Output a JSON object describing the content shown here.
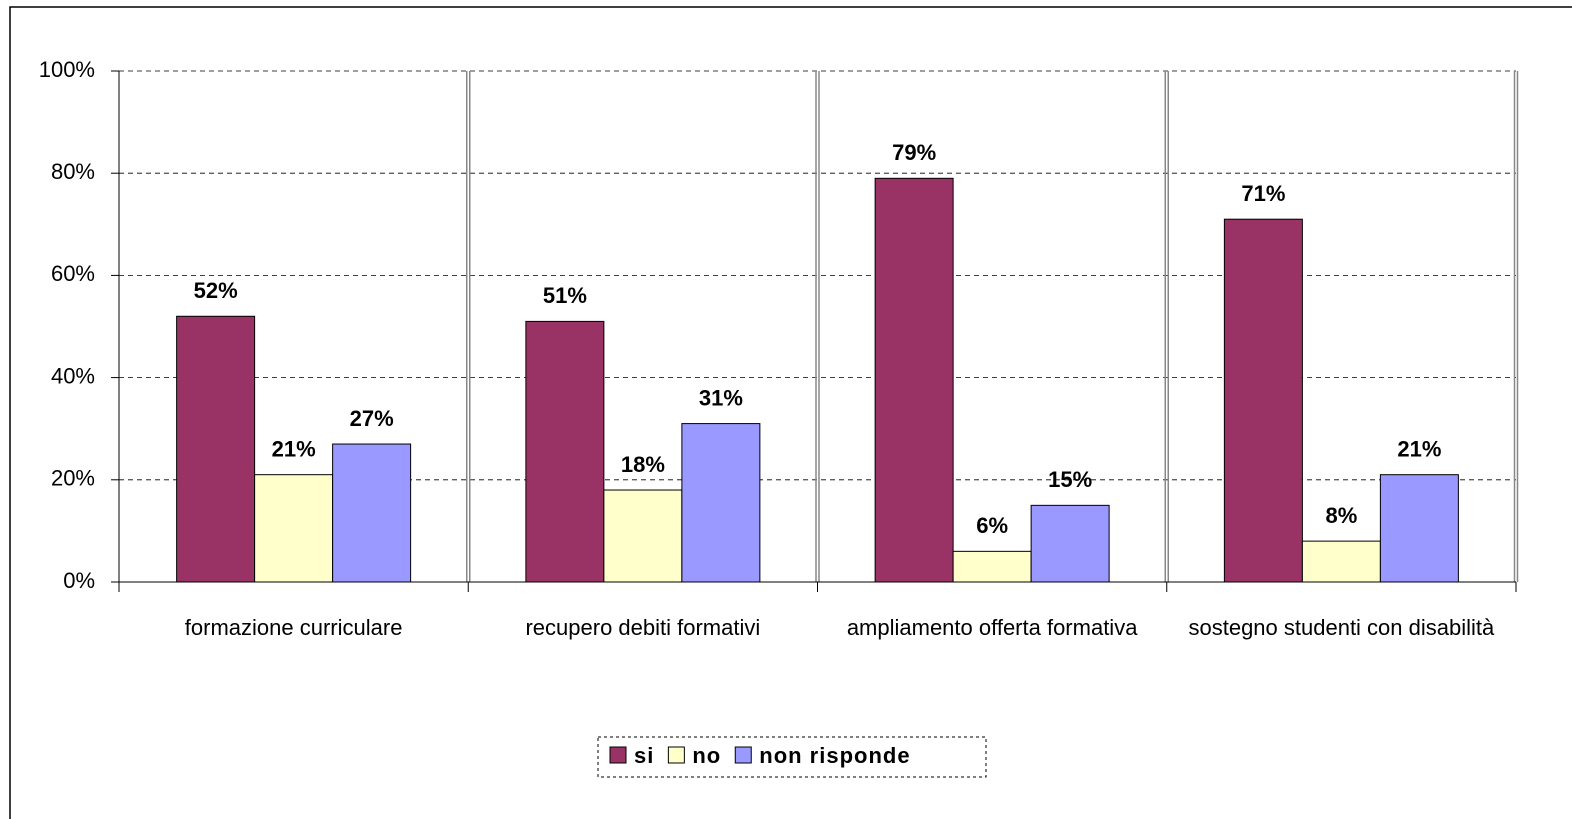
{
  "chart_data": {
    "type": "bar",
    "categories": [
      "formazione curriculare",
      "recupero debiti formativi",
      "ampliamento offerta formativa",
      "sostegno studenti con disabilità"
    ],
    "series": [
      {
        "name": "si",
        "color": "#993366",
        "values": [
          52,
          51,
          79,
          71
        ],
        "value_labels": [
          "52%",
          "51%",
          "79%",
          "71%"
        ]
      },
      {
        "name": "no",
        "color": "#ffffcc",
        "values": [
          21,
          18,
          6,
          8
        ],
        "value_labels": [
          "21%",
          "18%",
          "6%",
          "8%"
        ]
      },
      {
        "name": "non risponde",
        "color": "#9999ff",
        "values": [
          27,
          31,
          15,
          21
        ],
        "value_labels": [
          "27%",
          "31%",
          "15%",
          "21%"
        ]
      }
    ],
    "ylim": [
      0,
      100
    ],
    "yticks": [
      {
        "value": 0,
        "label": "0%"
      },
      {
        "value": 20,
        "label": "20%"
      },
      {
        "value": 40,
        "label": "40%"
      },
      {
        "value": 60,
        "label": "60%"
      },
      {
        "value": 80,
        "label": "80%"
      },
      {
        "value": 100,
        "label": "100%"
      }
    ],
    "grid": true,
    "legend": "bottom"
  }
}
